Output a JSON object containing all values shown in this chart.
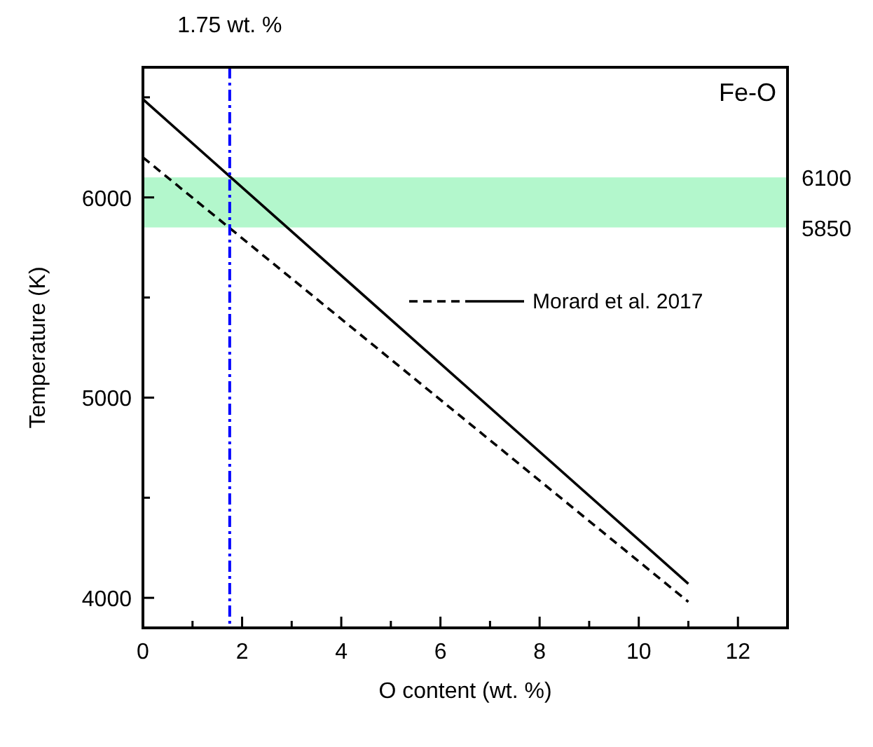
{
  "chart_data": {
    "type": "line",
    "xlabel": "O content (wt. %)",
    "ylabel": "Temperature (K)",
    "x": [
      0,
      11
    ],
    "xlim": [
      0,
      13
    ],
    "xticks": [
      0,
      {
        "value": 1,
        "label": null
      },
      2,
      {
        "value": 3,
        "label": null
      },
      4,
      {
        "value": 5,
        "label": null
      },
      6,
      {
        "value": 7,
        "label": null
      },
      8,
      {
        "value": 9,
        "label": null
      },
      10,
      {
        "value": 11,
        "label": null
      },
      12
    ],
    "ylim": [
      3850,
      6650
    ],
    "yticks": [
      4000,
      {
        "value": 4500,
        "label": null
      },
      5000,
      {
        "value": 5500,
        "label": null
      },
      6000,
      {
        "value": 6500,
        "label": null
      }
    ],
    "y2lim": [
      3850,
      6650
    ],
    "y2ticks": [
      5850,
      6100
    ],
    "series": [
      {
        "color": "#000000",
        "line_style": "dashed",
        "values": [
          6200,
          3980
        ]
      },
      {
        "name": "Morard et al. 2017",
        "color": "#000000",
        "line_style": "solid",
        "values": [
          6490,
          4070
        ]
      }
    ],
    "ref_lines": [
      {
        "axis": "x",
        "value": 1.75,
        "label": "1.75 wt. %",
        "color": "#0000ff",
        "line_style": "dashed"
      }
    ],
    "bands": [
      {
        "axis": "y",
        "from": 5850,
        "to": 6100,
        "color": "#b3f7cc"
      }
    ],
    "annotations": [
      "Fe-O"
    ],
    "legend": "right",
    "grid": false
  }
}
